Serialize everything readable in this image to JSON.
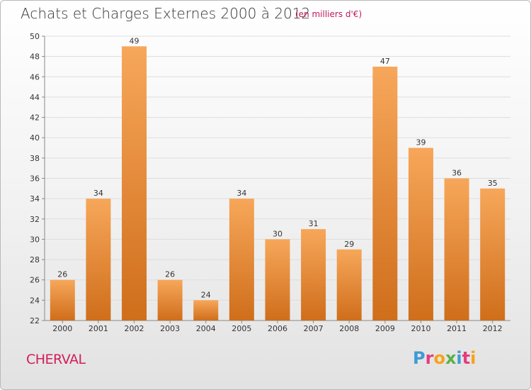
{
  "header": {
    "title": "Achats et Charges Externes 2000 à 2012",
    "unit": "(en milliers d'€)"
  },
  "footer": {
    "commune": "CHERVAL",
    "logo_text": "Proxiti"
  },
  "colors": {
    "bar_light": "#f7a75a",
    "bar_dark": "#cf6e1b",
    "title": "#333333",
    "commune": "#d21e5a",
    "logo": [
      "#3f9ad6",
      "#e43d7b",
      "#f7a21b",
      "#59b245",
      "#3f9ad6",
      "#e43d7b",
      "#f7a21b"
    ]
  },
  "chart_data": {
    "type": "bar",
    "title": "Achats et Charges Externes 2000 à 2012",
    "subtitle": "(en milliers d'€)",
    "xlabel": "",
    "ylabel": "",
    "categories": [
      "2000",
      "2001",
      "2002",
      "2003",
      "2004",
      "2005",
      "2006",
      "2007",
      "2008",
      "2009",
      "2010",
      "2011",
      "2012"
    ],
    "values": [
      26,
      34,
      49,
      26,
      24,
      34,
      30,
      31,
      29,
      47,
      39,
      36,
      35
    ],
    "ylim": [
      22,
      50
    ],
    "yticks": [
      22,
      24,
      26,
      28,
      30,
      32,
      34,
      36,
      38,
      40,
      42,
      44,
      46,
      48,
      50
    ],
    "grid": true,
    "legend": "none",
    "data_labels": true
  }
}
